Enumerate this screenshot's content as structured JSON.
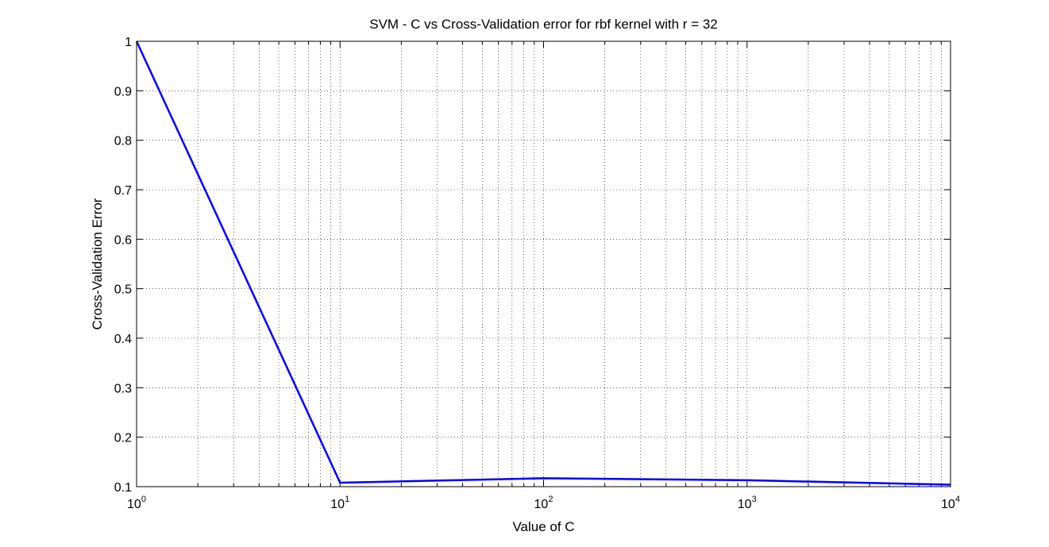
{
  "chart_data": {
    "type": "line",
    "title": "SVM - C vs Cross-Validation error for rbf kernel with r = 32",
    "xlabel": "Value of C",
    "ylabel": "Cross-Validation Error",
    "xscale": "log",
    "xlim": [
      1,
      10000
    ],
    "ylim": [
      0.1,
      1
    ],
    "grid": true,
    "x_ticks": [
      {
        "base": "10",
        "exp": "0",
        "value": 1
      },
      {
        "base": "10",
        "exp": "1",
        "value": 10
      },
      {
        "base": "10",
        "exp": "2",
        "value": 100
      },
      {
        "base": "10",
        "exp": "3",
        "value": 1000
      },
      {
        "base": "10",
        "exp": "4",
        "value": 10000
      }
    ],
    "y_ticks": [
      "0.1",
      "0.2",
      "0.3",
      "0.4",
      "0.5",
      "0.6",
      "0.7",
      "0.8",
      "0.9",
      "1"
    ],
    "line_color": "#0000ff",
    "series": [
      {
        "x": [
          1,
          10,
          100,
          1000,
          10000
        ],
        "y": [
          1.0,
          0.108,
          0.117,
          0.113,
          0.104
        ]
      }
    ]
  }
}
